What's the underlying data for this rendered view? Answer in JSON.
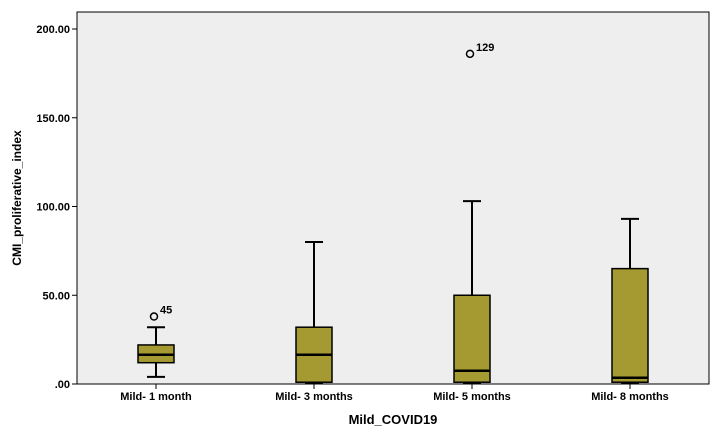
{
  "chart_data": {
    "type": "boxplot",
    "xlabel": "Mild_COVID19",
    "ylabel": "CMI_proliferative_index",
    "ylim": [
      0,
      210
    ],
    "yticks": [
      0,
      50,
      100,
      150,
      200
    ],
    "ytick_labels": [
      ".00",
      "50.00",
      "100.00",
      "150.00",
      "200.00"
    ],
    "grid": false,
    "box_color": "#a59a32",
    "plot_bg": "#eeeeee",
    "categories": [
      "Mild- 1 month",
      "Mild- 3 months",
      "Mild- 5 months",
      "Mild- 8 months"
    ],
    "boxes": [
      {
        "category": "Mild- 1 month",
        "whisker_low": 4,
        "q1": 12,
        "median": 16.5,
        "q3": 22,
        "whisker_high": 32,
        "outliers": [
          {
            "value": 38,
            "label": "45"
          }
        ]
      },
      {
        "category": "Mild- 3 months",
        "whisker_low": 0.5,
        "q1": 1,
        "median": 16.5,
        "q3": 32,
        "whisker_high": 80,
        "outliers": []
      },
      {
        "category": "Mild- 5 months",
        "whisker_low": 0.5,
        "q1": 1,
        "median": 7.5,
        "q3": 50,
        "whisker_high": 103,
        "outliers": [
          {
            "value": 186,
            "label": "129"
          }
        ]
      },
      {
        "category": "Mild- 8 months",
        "whisker_low": 0.5,
        "q1": 1,
        "median": 3.5,
        "q3": 65,
        "whisker_high": 93,
        "outliers": []
      }
    ]
  }
}
